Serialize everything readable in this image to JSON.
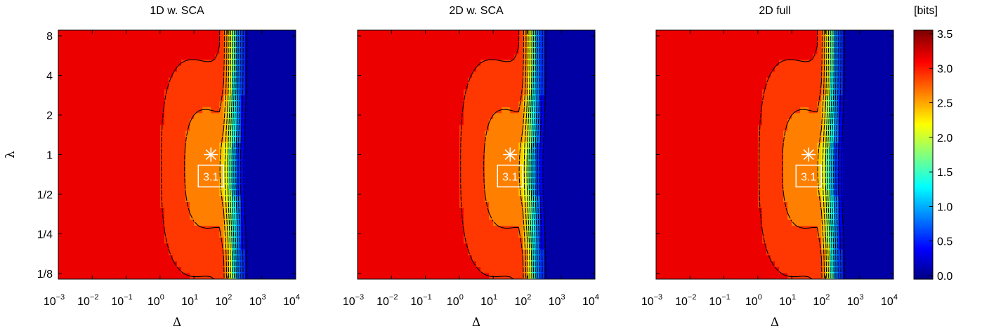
{
  "chart_data": {
    "type": "heatmap",
    "panels": [
      {
        "title": "1D w. SCA",
        "peak_label": "3.1",
        "peak": {
          "x": 31.6,
          "y": 1
        }
      },
      {
        "title": "2D w. SCA",
        "peak_label": "3.1",
        "peak": {
          "x": 31.6,
          "y": 1
        }
      },
      {
        "title": "2D full",
        "peak_label": "3.1",
        "peak": {
          "x": 31.6,
          "y": 1
        }
      }
    ],
    "xlabel": "Δ",
    "ylabel": "λ",
    "x_scale": "log",
    "y_scale": "log2",
    "xlim": [
      0.001,
      10000
    ],
    "ylim": [
      0.125,
      8
    ],
    "x_ticks": [
      {
        "base": "10",
        "exp": "−3"
      },
      {
        "base": "10",
        "exp": "−2"
      },
      {
        "base": "10",
        "exp": "−1"
      },
      {
        "base": "10",
        "exp": "0"
      },
      {
        "base": "10",
        "exp": "1"
      },
      {
        "base": "10",
        "exp": "2"
      },
      {
        "base": "10",
        "exp": "3"
      },
      {
        "base": "10",
        "exp": "4"
      }
    ],
    "y_ticks": [
      "8",
      "4",
      "2",
      "1",
      "1/2",
      "1/4",
      "1/8"
    ],
    "colorbar": {
      "unit": "[bits]",
      "range": [
        0,
        3.5
      ],
      "ticks": [
        "3.5",
        "3.0",
        "2.5",
        "2.0",
        "1.5",
        "1.0",
        "0.5",
        "0.0"
      ],
      "colormap": "jet"
    },
    "contour_levels": "dashed black contour lines at 0.25 bit spacing"
  }
}
